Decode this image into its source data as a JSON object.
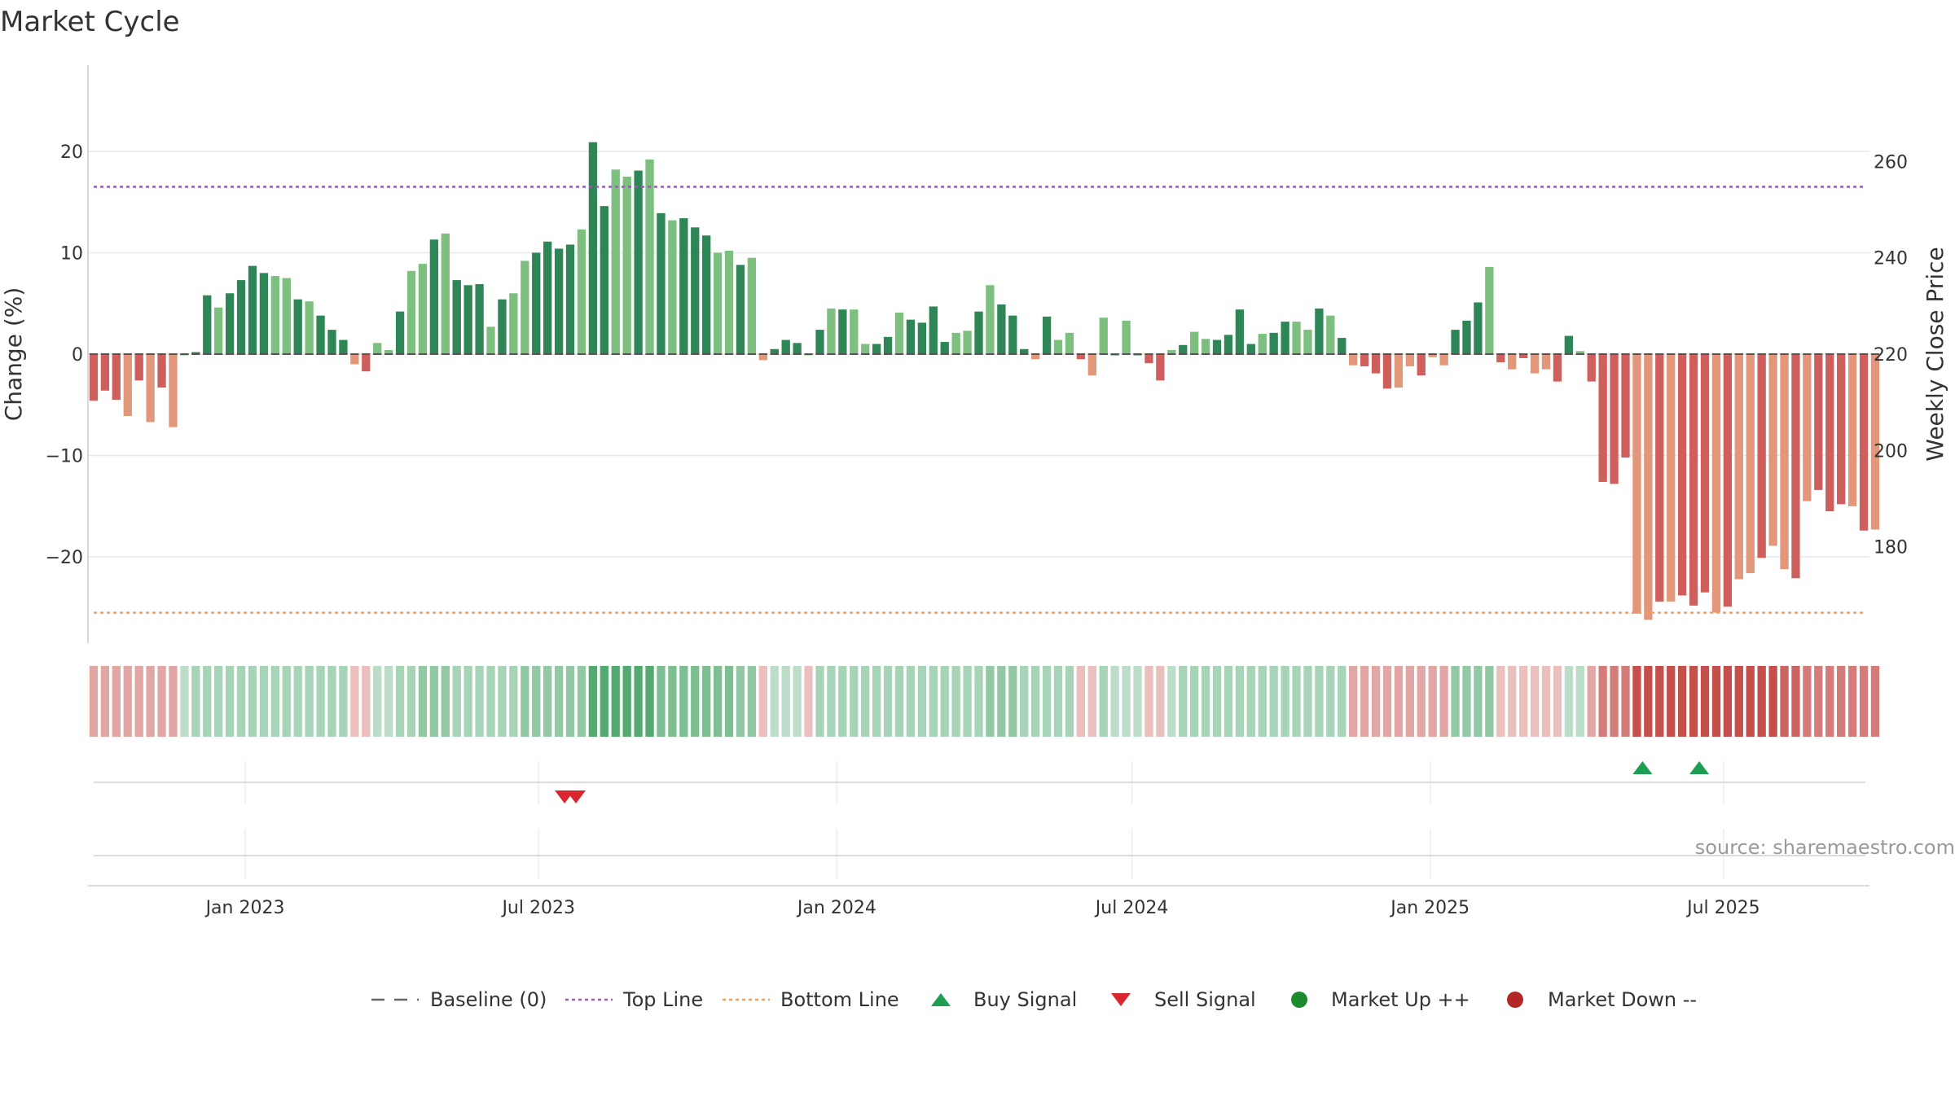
{
  "chart_data": {
    "type": "bar",
    "title": "Market Cycle",
    "ylabel": "Change (%)",
    "ylabel_right": "Weekly Close Price",
    "ylim": [
      -28.5,
      28.5
    ],
    "ylim_right": [
      160,
      280
    ],
    "yticks": [
      -20,
      -10,
      0,
      10,
      20
    ],
    "yticks_right": [
      180,
      200,
      220,
      240,
      260
    ],
    "top_line": 16.5,
    "bottom_line": -25.5,
    "x_start": "2022-09-26",
    "x_end": "2025-09-29",
    "xticks": [
      {
        "date": "2023-01-01",
        "label": "Jan 2023"
      },
      {
        "date": "2023-07-01",
        "label": "Jul 2023"
      },
      {
        "date": "2024-01-01",
        "label": "Jan 2024"
      },
      {
        "date": "2024-07-01",
        "label": "Jul 2024"
      },
      {
        "date": "2025-01-01",
        "label": "Jan 2025"
      },
      {
        "date": "2025-07-01",
        "label": "Jul 2025"
      }
    ],
    "first_week": "2022-09-26",
    "values": [
      -4.6,
      -3.6,
      -4.5,
      -6.1,
      -2.6,
      -6.7,
      -3.3,
      -7.2,
      0,
      0.2,
      5.8,
      4.6,
      6,
      7.3,
      8.7,
      8,
      7.7,
      7.5,
      5.4,
      5.2,
      3.8,
      2.4,
      1.4,
      -1,
      -1.7,
      1.1,
      0.4,
      4.2,
      8.2,
      8.9,
      11.3,
      11.9,
      7.3,
      6.8,
      6.9,
      2.7,
      5.4,
      6,
      9.2,
      10,
      11.1,
      10.4,
      10.8,
      12.3,
      20.9,
      14.6,
      18.2,
      17.5,
      18.1,
      19.2,
      13.9,
      13.2,
      13.4,
      12.5,
      11.7,
      10,
      10.2,
      8.8,
      9.5,
      -0.6,
      0.5,
      1.4,
      1.1,
      0,
      2.4,
      4.5,
      4.4,
      4.4,
      1,
      1,
      1.7,
      4.1,
      3.4,
      3.1,
      4.7,
      1.2,
      2.1,
      2.3,
      4.2,
      6.8,
      4.9,
      3.8,
      0.5,
      -0.5,
      3.7,
      1.4,
      2.1,
      -0.5,
      -2.1,
      3.6,
      0,
      3.3,
      0,
      -0.9,
      -2.6,
      0.4,
      0.9,
      2.2,
      1.5,
      1.4,
      1.9,
      4.4,
      1,
      2,
      2.1,
      3.2,
      3.2,
      2.4,
      4.5,
      3.8,
      1.6,
      -1.1,
      -1.2,
      -1.9,
      -3.4,
      -3.3,
      -1.2,
      -2.1,
      -0.3,
      -1.1,
      2.4,
      3.3,
      5.1,
      8.6,
      -0.8,
      -1.5,
      -0.4,
      -1.9,
      -1.5,
      -2.7,
      1.8,
      0.3,
      -2.7,
      -12.6,
      -12.8,
      -10.2,
      -25.6,
      -26.2,
      -24.4,
      -24.4,
      -23.8,
      -24.8,
      -23.5,
      -25.5,
      -24.9,
      -22.2,
      -21.6,
      -20.1,
      -18.9,
      -21.2,
      -22.1,
      -14.5,
      -13.4,
      -15.5,
      -14.8,
      -15,
      -17.4,
      -17.3
    ],
    "heat_levels": [
      -1,
      -1,
      -1,
      -1,
      -1,
      -1,
      -1,
      -1,
      0.5,
      1,
      1,
      1,
      1,
      1,
      1,
      1,
      1,
      1,
      1,
      1,
      1,
      1,
      1,
      -0.5,
      -0.5,
      0.5,
      0.5,
      1,
      1,
      1.5,
      1.5,
      1.5,
      1,
      1,
      1,
      1,
      1,
      1,
      1.5,
      1.5,
      1.5,
      1.5,
      1.5,
      1.5,
      3,
      3,
      3,
      3,
      3,
      3,
      2,
      2,
      2,
      2,
      2,
      2,
      2,
      1.5,
      1.5,
      -0.5,
      0.5,
      0.5,
      0.5,
      -0.5,
      1,
      1,
      1,
      1,
      1,
      1,
      1,
      1,
      1,
      1,
      1,
      1,
      1,
      1,
      1,
      1.5,
      1.5,
      1.5,
      1,
      1,
      1,
      1,
      1,
      -0.5,
      -0.5,
      1,
      0.5,
      0.5,
      0.5,
      -0.5,
      -0.5,
      0.5,
      1,
      1,
      1,
      1,
      1,
      1,
      1,
      1,
      1,
      1,
      1,
      1,
      1,
      1,
      1,
      -1,
      -1,
      -1,
      -1,
      -1,
      -1,
      -1,
      -1,
      -1,
      1.5,
      1.5,
      1.5,
      1.5,
      -0.5,
      -0.5,
      -0.5,
      -0.5,
      -0.5,
      -0.5,
      0.5,
      0.5,
      -1,
      -2,
      -2,
      -2,
      -3,
      -3,
      -3,
      -3,
      -3,
      -3,
      -3,
      -3,
      -3,
      -3,
      -3,
      -3,
      -3,
      -2.5,
      -2.5,
      -2,
      -2,
      -2,
      -2,
      -2,
      -2,
      -2
    ],
    "buy_signals": [
      "2025-05-12",
      "2025-06-16"
    ],
    "sell_signals": [
      "2023-07-17",
      "2023-07-24"
    ],
    "legend": [
      "Baseline (0)",
      "Top Line",
      "Bottom Line",
      "Buy Signal",
      "Sell Signal",
      "Market Up ++",
      "Market Down --"
    ],
    "legend_placement": "bottom-center",
    "grid": true
  },
  "source": "source: sharemaestro.com",
  "colors": {
    "pos_strong": "#2e8656",
    "pos_light": "#7cbf7e",
    "neg_strong": "#cf5f5c",
    "neg_light": "#e2977a",
    "top_line": "#9b59b6",
    "bottom_line": "#f0a060",
    "buy": "#1e9e52",
    "sell": "#d9262e",
    "market_up": "#1e8a2e",
    "market_down": "#b22626"
  }
}
